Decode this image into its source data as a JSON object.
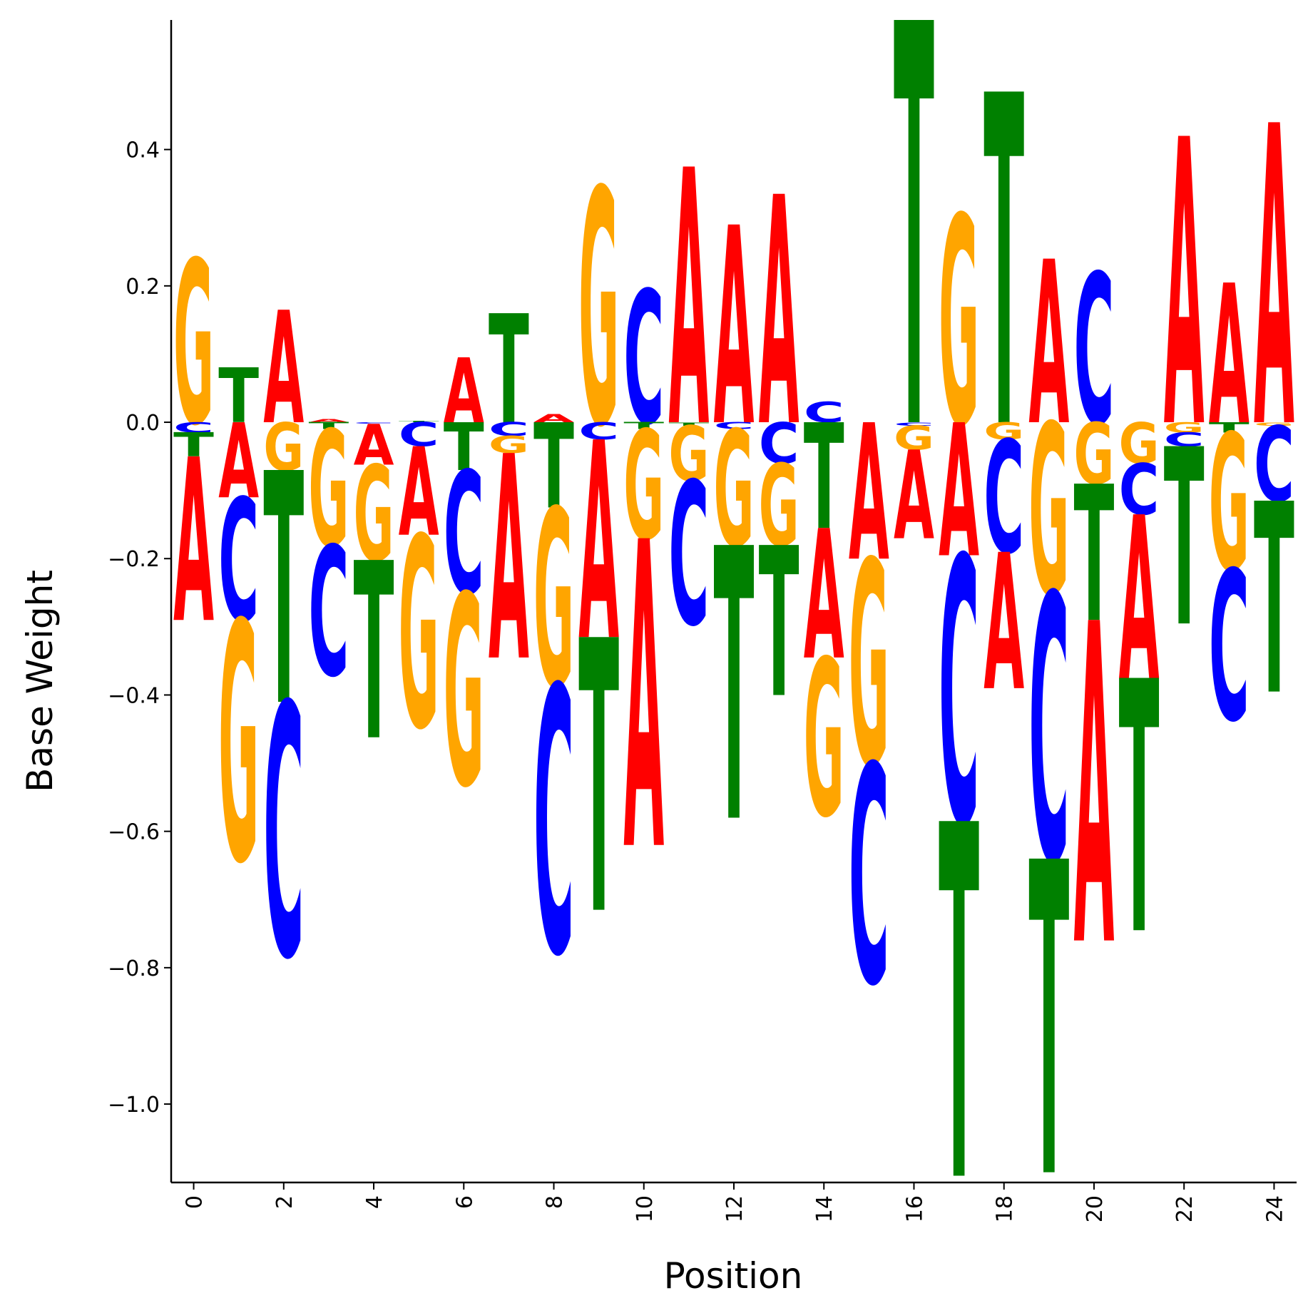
{
  "chart_data": {
    "type": "sequence-logo",
    "xlabel": "Position",
    "ylabel": "Base Weight",
    "ylim": [
      -1.115,
      0.59
    ],
    "xlim": [
      -0.5,
      24.5
    ],
    "x_ticks": [
      0,
      2,
      4,
      6,
      8,
      10,
      12,
      14,
      16,
      18,
      20,
      22,
      24
    ],
    "y_ticks": [
      -1.0,
      -0.8,
      -0.6,
      -0.4,
      -0.2,
      0.0,
      0.2,
      0.4
    ],
    "y_tick_labels": [
      "−1.0",
      "−0.8",
      "−0.6",
      "−0.4",
      "−0.2",
      "0.0",
      "0.2",
      "0.4"
    ],
    "x_tick_labels": [
      "0",
      "2",
      "4",
      "6",
      "8",
      "10",
      "12",
      "14",
      "16",
      "18",
      "20",
      "22",
      "24"
    ],
    "colors": {
      "A": "#ff0000",
      "C": "#0000ff",
      "G": "#ffa500",
      "T": "#008000"
    },
    "positions": [
      {
        "pos": 0,
        "A": -0.24,
        "C": -0.015,
        "G": 0.24,
        "T": -0.035
      },
      {
        "pos": 1,
        "A": -0.11,
        "C": -0.18,
        "G": -0.35,
        "T": 0.08
      },
      {
        "pos": 2,
        "A": 0.165,
        "C": -0.37,
        "G": -0.07,
        "T": -0.34
      },
      {
        "pos": 3,
        "A": 0.005,
        "C": -0.19,
        "G": -0.17,
        "T": -0.01
      },
      {
        "pos": 4,
        "A": -0.06,
        "C": -0.002,
        "G": -0.14,
        "T": -0.26
      },
      {
        "pos": 5,
        "A": -0.13,
        "C": -0.035,
        "G": -0.28,
        "T": 0.002
      },
      {
        "pos": 6,
        "A": 0.095,
        "C": -0.18,
        "G": -0.28,
        "T": -0.07
      },
      {
        "pos": 7,
        "A": -0.3,
        "C": -0.02,
        "G": -0.025,
        "T": 0.16
      },
      {
        "pos": 8,
        "A": 0.012,
        "C": -0.39,
        "G": -0.26,
        "T": -0.125
      },
      {
        "pos": 9,
        "A": -0.29,
        "C": -0.025,
        "G": 0.345,
        "T": -0.4
      },
      {
        "pos": 10,
        "A": -0.45,
        "C": 0.195,
        "G": -0.16,
        "T": -0.01
      },
      {
        "pos": 11,
        "A": 0.375,
        "C": -0.21,
        "G": -0.08,
        "T": -0.005
      },
      {
        "pos": 12,
        "A": 0.29,
        "C": -0.01,
        "G": -0.17,
        "T": -0.4
      },
      {
        "pos": 13,
        "A": 0.335,
        "C": -0.06,
        "G": -0.12,
        "T": -0.22
      },
      {
        "pos": 14,
        "A": -0.19,
        "C": 0.03,
        "G": -0.23,
        "T": -0.155
      },
      {
        "pos": 15,
        "A": -0.2,
        "C": -0.32,
        "G": -0.3,
        "T": 0.0
      },
      {
        "pos": 16,
        "A": -0.13,
        "C": -0.005,
        "G": -0.035,
        "T": 0.59
      },
      {
        "pos": 17,
        "A": -0.195,
        "C": -0.39,
        "G": 0.305,
        "T": -0.52
      },
      {
        "pos": 18,
        "A": -0.2,
        "C": -0.165,
        "G": -0.025,
        "T": 0.485
      },
      {
        "pos": 19,
        "A": 0.24,
        "C": -0.39,
        "G": -0.25,
        "T": -0.46
      },
      {
        "pos": 20,
        "A": -0.47,
        "C": 0.22,
        "G": -0.09,
        "T": -0.2
      },
      {
        "pos": 21,
        "A": -0.24,
        "C": -0.075,
        "G": -0.06,
        "T": -0.37
      },
      {
        "pos": 22,
        "A": 0.42,
        "C": -0.02,
        "G": -0.015,
        "T": -0.26
      },
      {
        "pos": 23,
        "A": 0.205,
        "C": -0.22,
        "G": -0.2,
        "T": -0.015
      },
      {
        "pos": 24,
        "A": 0.44,
        "C": -0.11,
        "G": -0.005,
        "T": -0.28
      }
    ]
  }
}
